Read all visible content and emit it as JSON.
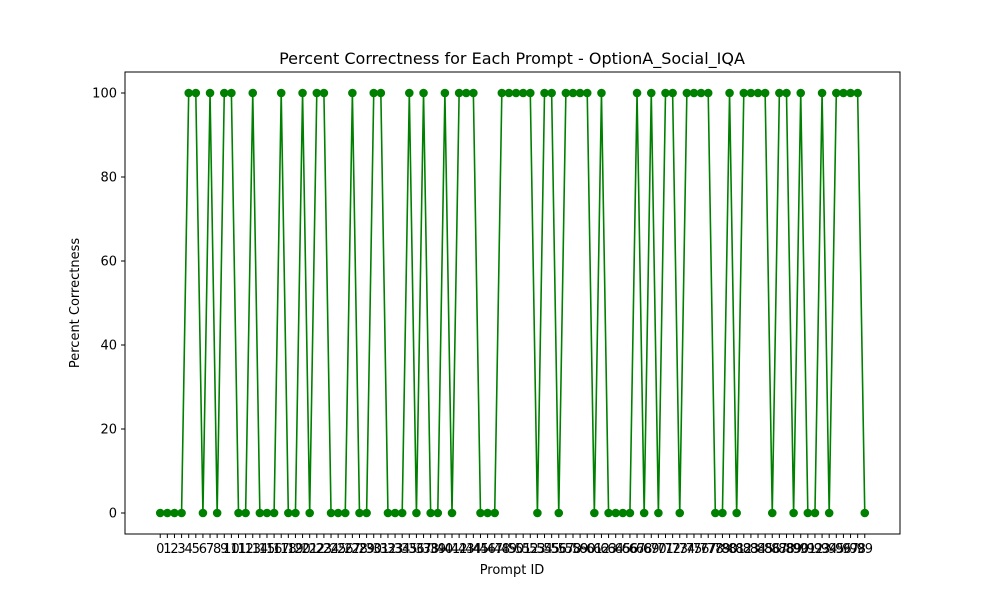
{
  "chart_data": {
    "type": "line",
    "title": "Percent Correctness for Each Prompt - OptionA_Social_IQA",
    "xlabel": "Prompt ID",
    "ylabel": "Percent Correctness",
    "xlim": [
      -4.95,
      103.95
    ],
    "ylim": [
      -5,
      105
    ],
    "yticks": [
      0,
      20,
      40,
      60,
      80,
      100
    ],
    "grid": false,
    "series": [
      {
        "color": "#008000",
        "marker": "circle",
        "x": [
          0,
          1,
          2,
          3,
          4,
          5,
          6,
          7,
          8,
          9,
          10,
          11,
          12,
          13,
          14,
          15,
          16,
          17,
          18,
          19,
          20,
          21,
          22,
          23,
          24,
          25,
          26,
          27,
          28,
          29,
          30,
          31,
          32,
          33,
          34,
          35,
          36,
          37,
          38,
          39,
          40,
          41,
          42,
          43,
          44,
          45,
          46,
          47,
          48,
          49,
          50,
          51,
          52,
          53,
          54,
          55,
          56,
          57,
          58,
          59,
          60,
          61,
          62,
          63,
          64,
          65,
          66,
          67,
          68,
          69,
          70,
          71,
          72,
          73,
          74,
          75,
          76,
          77,
          78,
          79,
          80,
          81,
          82,
          83,
          84,
          85,
          86,
          87,
          88,
          89,
          90,
          91,
          92,
          93,
          94,
          95,
          96,
          97,
          98,
          99
        ],
        "values": [
          0,
          0,
          0,
          0,
          100,
          100,
          0,
          100,
          0,
          100,
          100,
          0,
          0,
          100,
          0,
          0,
          0,
          100,
          0,
          0,
          100,
          0,
          100,
          100,
          0,
          0,
          0,
          100,
          0,
          0,
          100,
          100,
          0,
          0,
          0,
          100,
          0,
          100,
          0,
          0,
          100,
          0,
          100,
          100,
          100,
          0,
          0,
          0,
          100,
          100,
          100,
          100,
          100,
          0,
          100,
          100,
          0,
          100,
          100,
          100,
          100,
          0,
          100,
          0,
          0,
          0,
          0,
          100,
          0,
          100,
          0,
          100,
          100,
          0,
          100,
          100,
          100,
          100,
          0,
          0,
          100,
          0,
          100,
          100,
          100,
          100,
          0,
          100,
          100,
          0,
          100,
          0,
          0,
          100,
          0,
          100,
          100,
          100,
          100,
          0
        ]
      }
    ]
  }
}
